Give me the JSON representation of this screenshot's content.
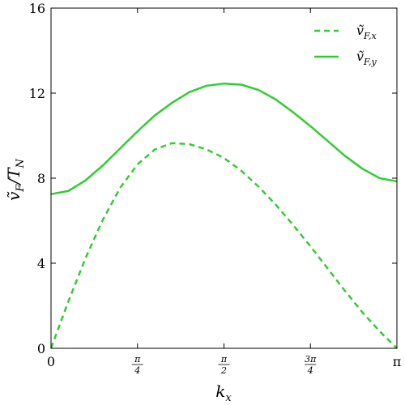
{
  "chart_data": {
    "type": "line",
    "xlabel": "k_x",
    "ylabel": "ṽ_F/T_N",
    "xlim": [
      0,
      3.14159
    ],
    "ylim": [
      0,
      16
    ],
    "yticks": [
      0,
      4,
      8,
      12,
      16
    ],
    "ytick_labels": [
      "0",
      "4",
      "8",
      "12",
      "16"
    ],
    "xticks": [
      0,
      0.785398,
      1.570796,
      2.356194,
      3.141593
    ],
    "xtick_labels": [
      {
        "type": "text",
        "text": "0"
      },
      {
        "type": "frac",
        "num": "π",
        "den": "4"
      },
      {
        "type": "frac",
        "num": "π",
        "den": "2"
      },
      {
        "type": "frac",
        "num": "3π",
        "den": "4"
      },
      {
        "type": "text",
        "text": "π"
      }
    ],
    "legend_position": "top-right",
    "color": "#33cc33",
    "series": [
      {
        "name": "ṽ_{F,x}",
        "style": "dashed",
        "x": [
          0,
          0.157,
          0.314,
          0.471,
          0.628,
          0.785,
          0.942,
          1.1,
          1.257,
          1.414,
          1.571,
          1.728,
          1.885,
          2.042,
          2.199,
          2.356,
          2.513,
          2.67,
          2.827,
          2.985,
          3.142
        ],
        "y": [
          0,
          2.2,
          4.25,
          6.05,
          7.55,
          8.65,
          9.35,
          9.65,
          9.6,
          9.35,
          8.95,
          8.35,
          7.6,
          6.75,
          5.8,
          4.8,
          3.75,
          2.7,
          1.7,
          0.8,
          0
        ]
      },
      {
        "name": "ṽ_{F,y}",
        "style": "solid",
        "x": [
          0,
          0.157,
          0.314,
          0.471,
          0.628,
          0.785,
          0.942,
          1.1,
          1.257,
          1.414,
          1.571,
          1.728,
          1.885,
          2.042,
          2.199,
          2.356,
          2.513,
          2.67,
          2.827,
          2.985,
          3.142
        ],
        "y": [
          7.25,
          7.4,
          7.9,
          8.6,
          9.4,
          10.2,
          10.95,
          11.55,
          12.05,
          12.35,
          12.45,
          12.4,
          12.15,
          11.7,
          11.1,
          10.45,
          9.75,
          9.05,
          8.45,
          8.0,
          7.85
        ]
      }
    ]
  }
}
